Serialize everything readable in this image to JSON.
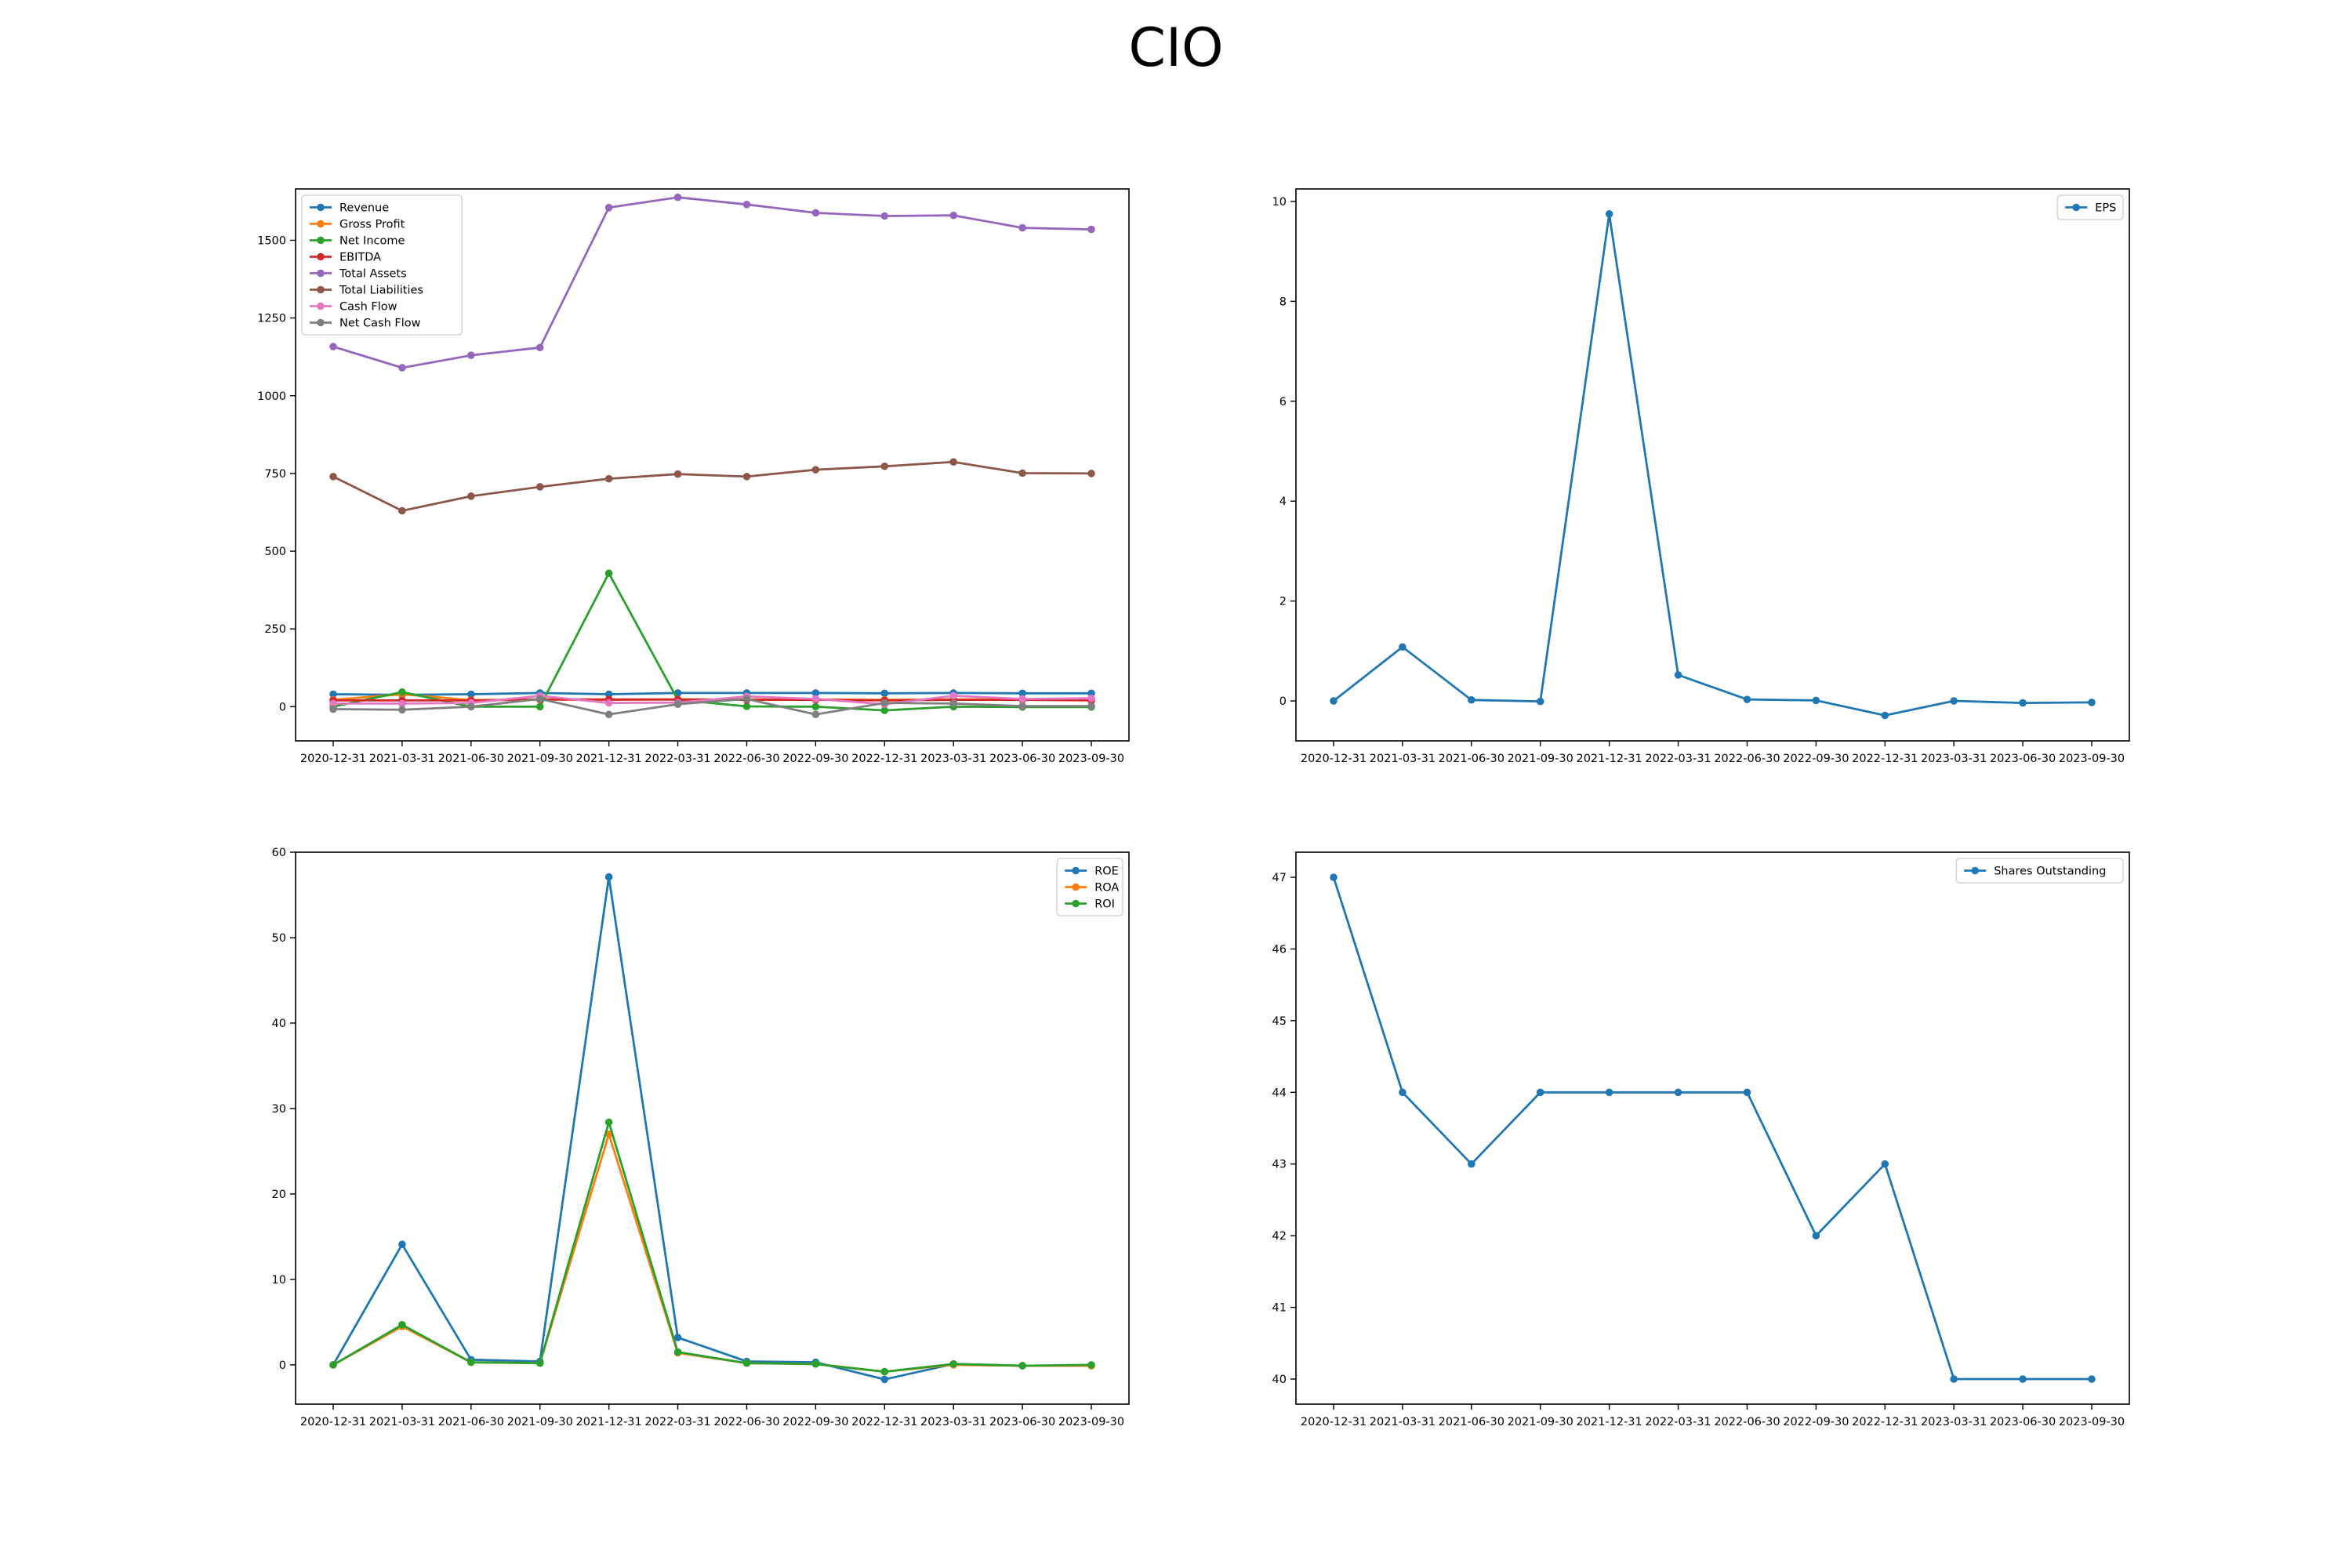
{
  "title": "CIO",
  "chart_data": [
    {
      "type": "line",
      "categories": [
        "2020-12-31",
        "2021-03-31",
        "2021-06-30",
        "2021-09-30",
        "2021-12-31",
        "2022-03-31",
        "2022-06-30",
        "2022-09-30",
        "2022-12-31",
        "2023-03-31",
        "2023-06-30",
        "2023-09-30"
      ],
      "ylim": [
        -110,
        1665
      ],
      "yticks": [
        0,
        250,
        500,
        750,
        1000,
        1250,
        1500
      ],
      "legend_position": "top-left",
      "grid": false,
      "series": [
        {
          "name": "Revenue",
          "color": "#1f77b4",
          "values": [
            40,
            38,
            40,
            44,
            40,
            44,
            44,
            44,
            43,
            44,
            43,
            43
          ]
        },
        {
          "name": "Gross Profit",
          "color": "#ff7f0e",
          "values": [
            22,
            40,
            21,
            23,
            22,
            23,
            23,
            23,
            22,
            23,
            23,
            23
          ]
        },
        {
          "name": "Net Income",
          "color": "#2ca02c",
          "values": [
            0,
            47,
            0,
            0,
            429,
            22,
            1,
            0,
            -12,
            0,
            -1,
            -1
          ]
        },
        {
          "name": "EBITDA",
          "color": "#d62728",
          "values": [
            20,
            20,
            20,
            23,
            23,
            23,
            22,
            22,
            20,
            22,
            22,
            20
          ]
        },
        {
          "name": "Total Assets",
          "color": "#9467bd",
          "values": [
            1158,
            1090,
            1130,
            1155,
            1605,
            1638,
            1615,
            1588,
            1578,
            1580,
            1540,
            1535
          ]
        },
        {
          "name": "Total Liabilities",
          "color": "#8c564b",
          "values": [
            740,
            630,
            677,
            707,
            733,
            748,
            740,
            762,
            773,
            787,
            751,
            750
          ]
        },
        {
          "name": "Cash Flow",
          "color": "#e377c2",
          "values": [
            10,
            10,
            12,
            35,
            12,
            13,
            33,
            25,
            8,
            35,
            25,
            27
          ]
        },
        {
          "name": "Net Cash Flow",
          "color": "#7f7f7f",
          "values": [
            -8,
            -10,
            0,
            25,
            -25,
            8,
            25,
            -25,
            12,
            10,
            2,
            2
          ]
        }
      ]
    },
    {
      "type": "line",
      "categories": [
        "2020-12-31",
        "2021-03-31",
        "2021-06-30",
        "2021-09-30",
        "2021-12-31",
        "2022-03-31",
        "2022-06-30",
        "2022-09-30",
        "2022-12-31",
        "2023-03-31",
        "2023-06-30",
        "2023-09-30"
      ],
      "ylim": [
        -0.8,
        10.25
      ],
      "yticks": [
        0,
        2,
        4,
        6,
        8,
        10
      ],
      "legend_position": "top-right",
      "grid": false,
      "series": [
        {
          "name": "EPS",
          "color": "#1f77b4",
          "values": [
            0.0,
            1.08,
            0.02,
            -0.01,
            9.75,
            0.52,
            0.03,
            0.01,
            -0.29,
            0.0,
            -0.04,
            -0.03
          ]
        }
      ]
    },
    {
      "type": "line",
      "categories": [
        "2020-12-31",
        "2021-03-31",
        "2021-06-30",
        "2021-09-30",
        "2021-12-31",
        "2022-03-31",
        "2022-06-30",
        "2022-09-30",
        "2022-12-31",
        "2023-03-31",
        "2023-06-30",
        "2023-09-30"
      ],
      "ylim": [
        -4.6,
        60
      ],
      "yticks": [
        0,
        10,
        20,
        30,
        40,
        50,
        60
      ],
      "legend_position": "top-right",
      "grid": false,
      "series": [
        {
          "name": "ROE",
          "color": "#1f77b4",
          "values": [
            0.0,
            14.1,
            0.6,
            0.4,
            57.1,
            3.2,
            0.4,
            0.3,
            -1.7,
            0.1,
            -0.1,
            -0.1
          ]
        },
        {
          "name": "ROA",
          "color": "#ff7f0e",
          "values": [
            0.0,
            4.5,
            0.3,
            0.2,
            27.0,
            1.4,
            0.2,
            0.1,
            -0.8,
            0.0,
            -0.1,
            -0.1
          ]
        },
        {
          "name": "ROI",
          "color": "#2ca02c",
          "values": [
            0.0,
            4.7,
            0.3,
            0.2,
            28.4,
            1.5,
            0.2,
            0.1,
            -0.8,
            0.1,
            -0.1,
            0.0
          ]
        }
      ]
    },
    {
      "type": "line",
      "categories": [
        "2020-12-31",
        "2021-03-31",
        "2021-06-30",
        "2021-09-30",
        "2021-12-31",
        "2022-03-31",
        "2022-06-30",
        "2022-09-30",
        "2022-12-31",
        "2023-03-31",
        "2023-06-30",
        "2023-09-30"
      ],
      "ylim": [
        39.65,
        47.35
      ],
      "yticks": [
        40,
        41,
        42,
        43,
        44,
        45,
        46,
        47
      ],
      "legend_position": "top-right",
      "grid": false,
      "series": [
        {
          "name": "Shares Outstanding",
          "color": "#1f77b4",
          "values": [
            47,
            44,
            43,
            44,
            44,
            44,
            44,
            42,
            43,
            40,
            40,
            40
          ]
        }
      ]
    }
  ]
}
